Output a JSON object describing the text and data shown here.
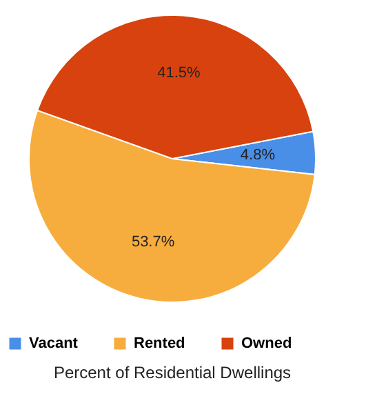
{
  "chart_data": {
    "type": "pie",
    "title": "Percent of Residential Dwellings",
    "categories": [
      "Vacant",
      "Rented",
      "Owned"
    ],
    "values": [
      4.8,
      53.7,
      41.5
    ],
    "colors": [
      "#4a8fe7",
      "#f7ad3e",
      "#d8420e"
    ],
    "value_labels": [
      "4.8%",
      "53.7%",
      "41.5%"
    ],
    "legend": "bottom"
  }
}
